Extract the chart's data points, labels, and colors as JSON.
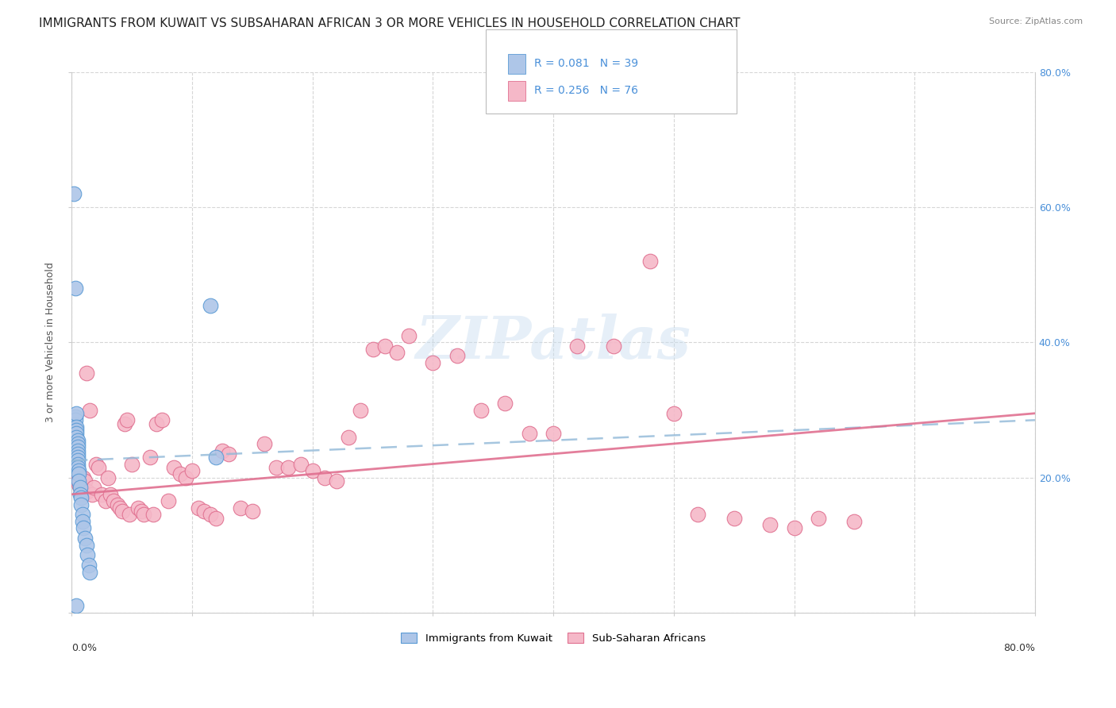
{
  "title": "IMMIGRANTS FROM KUWAIT VS SUBSAHARAN AFRICAN 3 OR MORE VEHICLES IN HOUSEHOLD CORRELATION CHART",
  "source": "Source: ZipAtlas.com",
  "ylabel": "3 or more Vehicles in Household",
  "xlim": [
    0.0,
    0.8
  ],
  "ylim": [
    0.0,
    0.8
  ],
  "color_kuwait_fill": "#aec6e8",
  "color_kuwait_edge": "#5b9bd5",
  "color_subsaharan_fill": "#f5b8c8",
  "color_subsaharan_edge": "#e07090",
  "color_blue_text": "#4a90d9",
  "trendline_kuwait_color": "#90b8d8",
  "trendline_subsaharan_color": "#e07090",
  "watermark": "ZIPatlas",
  "title_fontsize": 11,
  "label_fontsize": 9,
  "tick_fontsize": 9,
  "legend_r1": "R = 0.081",
  "legend_n1": "N = 39",
  "legend_r2": "R = 0.256",
  "legend_n2": "N = 76",
  "kuwait_x": [
    0.002,
    0.002,
    0.003,
    0.003,
    0.003,
    0.004,
    0.004,
    0.004,
    0.004,
    0.004,
    0.005,
    0.005,
    0.005,
    0.005,
    0.005,
    0.005,
    0.005,
    0.005,
    0.005,
    0.006,
    0.006,
    0.006,
    0.007,
    0.007,
    0.008,
    0.008,
    0.009,
    0.009,
    0.01,
    0.011,
    0.012,
    0.013,
    0.014,
    0.015,
    0.115,
    0.12,
    0.002,
    0.003,
    0.004
  ],
  "kuwait_y": [
    0.28,
    0.255,
    0.29,
    0.285,
    0.27,
    0.295,
    0.275,
    0.27,
    0.265,
    0.26,
    0.255,
    0.25,
    0.245,
    0.24,
    0.235,
    0.23,
    0.225,
    0.22,
    0.215,
    0.21,
    0.205,
    0.195,
    0.185,
    0.175,
    0.17,
    0.16,
    0.145,
    0.135,
    0.125,
    0.11,
    0.1,
    0.085,
    0.07,
    0.06,
    0.455,
    0.23,
    0.62,
    0.48,
    0.01
  ],
  "subsaharan_x": [
    0.004,
    0.005,
    0.006,
    0.007,
    0.008,
    0.009,
    0.01,
    0.011,
    0.012,
    0.013,
    0.015,
    0.017,
    0.018,
    0.02,
    0.022,
    0.025,
    0.028,
    0.03,
    0.032,
    0.035,
    0.038,
    0.04,
    0.042,
    0.044,
    0.046,
    0.048,
    0.05,
    0.055,
    0.058,
    0.06,
    0.065,
    0.068,
    0.07,
    0.075,
    0.08,
    0.085,
    0.09,
    0.095,
    0.1,
    0.105,
    0.11,
    0.115,
    0.12,
    0.125,
    0.13,
    0.14,
    0.15,
    0.16,
    0.17,
    0.18,
    0.19,
    0.2,
    0.21,
    0.22,
    0.23,
    0.24,
    0.25,
    0.26,
    0.27,
    0.28,
    0.3,
    0.32,
    0.34,
    0.36,
    0.38,
    0.4,
    0.42,
    0.45,
    0.48,
    0.5,
    0.52,
    0.55,
    0.58,
    0.6,
    0.62,
    0.65
  ],
  "subsaharan_y": [
    0.2,
    0.195,
    0.19,
    0.185,
    0.18,
    0.175,
    0.2,
    0.195,
    0.355,
    0.18,
    0.3,
    0.175,
    0.185,
    0.22,
    0.215,
    0.175,
    0.165,
    0.2,
    0.175,
    0.165,
    0.16,
    0.155,
    0.15,
    0.28,
    0.285,
    0.145,
    0.22,
    0.155,
    0.15,
    0.145,
    0.23,
    0.145,
    0.28,
    0.285,
    0.165,
    0.215,
    0.205,
    0.2,
    0.21,
    0.155,
    0.15,
    0.145,
    0.14,
    0.24,
    0.235,
    0.155,
    0.15,
    0.25,
    0.215,
    0.215,
    0.22,
    0.21,
    0.2,
    0.195,
    0.26,
    0.3,
    0.39,
    0.395,
    0.385,
    0.41,
    0.37,
    0.38,
    0.3,
    0.31,
    0.265,
    0.265,
    0.395,
    0.395,
    0.52,
    0.295,
    0.145,
    0.14,
    0.13,
    0.125,
    0.14,
    0.135
  ],
  "kuwait_trend_x": [
    0.0,
    0.8
  ],
  "kuwait_trend_y": [
    0.225,
    0.285
  ],
  "subsaharan_trend_x": [
    0.0,
    0.8
  ],
  "subsaharan_trend_y": [
    0.175,
    0.295
  ]
}
